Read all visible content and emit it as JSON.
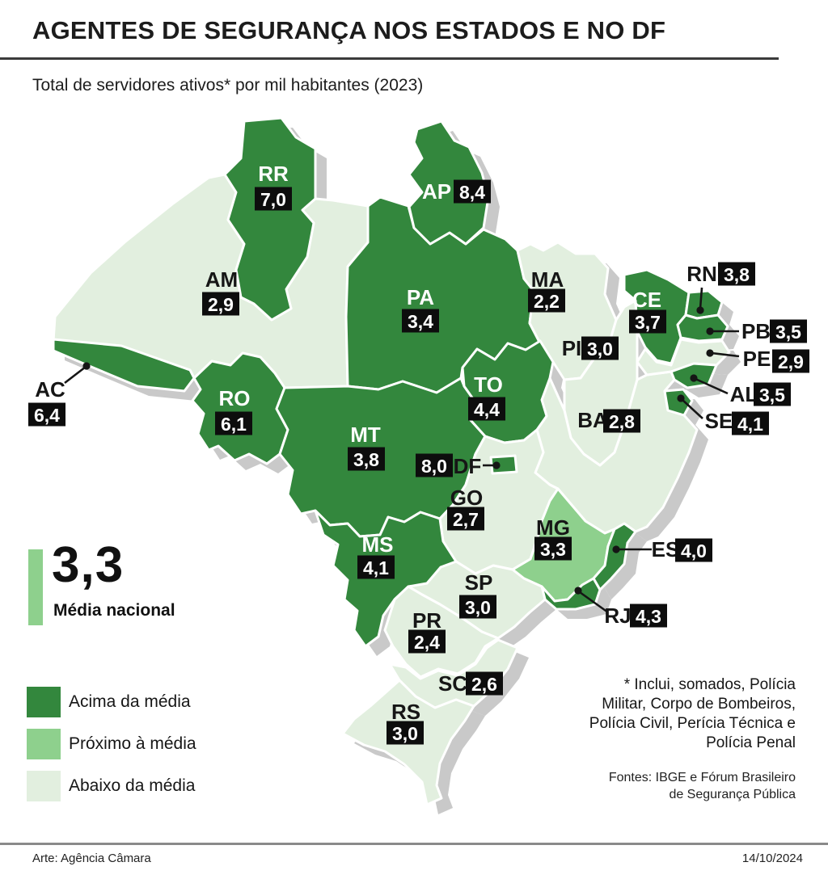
{
  "header": {
    "title": "AGENTES DE SEGURANÇA NOS ESTADOS E NO DF",
    "subtitle": "Total de servidores ativos* por mil habitantes (2023)"
  },
  "colors": {
    "above": "#33873d",
    "near": "#8ed08d",
    "below": "#e2efdf",
    "shadow": "#c9c9c9",
    "badge_bg": "#0d0d0d",
    "badge_text": "#ffffff",
    "label_dark": "#161616",
    "label_light": "#ffffff"
  },
  "map": {
    "states": [
      {
        "abbr": "AM",
        "value": "2,9",
        "category": "below",
        "label_color": "dark"
      },
      {
        "abbr": "PA",
        "value": "3,4",
        "category": "above",
        "label_color": "light"
      },
      {
        "abbr": "MA",
        "value": "2,2",
        "category": "below",
        "label_color": "dark"
      },
      {
        "abbr": "PI",
        "value": "3,0",
        "category": "below",
        "label_color": "dark"
      },
      {
        "abbr": "BA",
        "value": "2,8",
        "category": "below",
        "label_color": "dark"
      },
      {
        "abbr": "PE",
        "value": "2,9",
        "category": "below",
        "label_color": "dark"
      },
      {
        "abbr": "CE",
        "value": "3,7",
        "category": "above",
        "label_color": "light"
      },
      {
        "abbr": "RN",
        "value": "3,8",
        "category": "above",
        "label_color": "dark"
      },
      {
        "abbr": "PB",
        "value": "3,5",
        "category": "above",
        "label_color": "dark"
      },
      {
        "abbr": "AL",
        "value": "3,5",
        "category": "above",
        "label_color": "dark"
      },
      {
        "abbr": "SE",
        "value": "4,1",
        "category": "above",
        "label_color": "dark"
      },
      {
        "abbr": "RR",
        "value": "7,0",
        "category": "above",
        "label_color": "light"
      },
      {
        "abbr": "AP",
        "value": "8,4",
        "category": "above",
        "label_color": "light"
      },
      {
        "abbr": "AC",
        "value": "6,4",
        "category": "above",
        "label_color": "dark"
      },
      {
        "abbr": "RO",
        "value": "6,1",
        "category": "above",
        "label_color": "light"
      },
      {
        "abbr": "MT",
        "value": "3,8",
        "category": "above",
        "label_color": "light"
      },
      {
        "abbr": "TO",
        "value": "4,4",
        "category": "above",
        "label_color": "light"
      },
      {
        "abbr": "GO",
        "value": "2,7",
        "category": "below",
        "label_color": "dark"
      },
      {
        "abbr": "MG",
        "value": "3,3",
        "category": "near",
        "label_color": "dark"
      },
      {
        "abbr": "ES",
        "value": "4,0",
        "category": "above",
        "label_color": "dark"
      },
      {
        "abbr": "RJ",
        "value": "4,3",
        "category": "above",
        "label_color": "dark"
      },
      {
        "abbr": "SP",
        "value": "3,0",
        "category": "below",
        "label_color": "dark"
      },
      {
        "abbr": "MS",
        "value": "4,1",
        "category": "above",
        "label_color": "light"
      },
      {
        "abbr": "PR",
        "value": "2,4",
        "category": "below",
        "label_color": "dark"
      },
      {
        "abbr": "SC",
        "value": "2,6",
        "category": "below",
        "label_color": "dark"
      },
      {
        "abbr": "RS",
        "value": "3,0",
        "category": "below",
        "label_color": "dark"
      },
      {
        "abbr": "DF",
        "value": "8,0",
        "category": "above",
        "label_color": "dark"
      }
    ]
  },
  "average": {
    "value": "3,3",
    "label": "Média nacional"
  },
  "legend": {
    "items": [
      {
        "label": "Acima da média",
        "category": "above"
      },
      {
        "label": "Próximo à média",
        "category": "near"
      },
      {
        "label": "Abaixo da média",
        "category": "below"
      }
    ]
  },
  "footnote": {
    "lines": [
      "* Inclui, somados, Polícia",
      "Militar, Corpo de Bombeiros,",
      "Polícia Civil, Perícia Técnica e",
      "Polícia Penal"
    ]
  },
  "sources": {
    "lines": [
      "Fontes: IBGE e Fórum Brasileiro",
      "de Segurança Pública"
    ]
  },
  "footer": {
    "credit": "Arte: Agência Câmara",
    "date": "14/10/2024"
  }
}
